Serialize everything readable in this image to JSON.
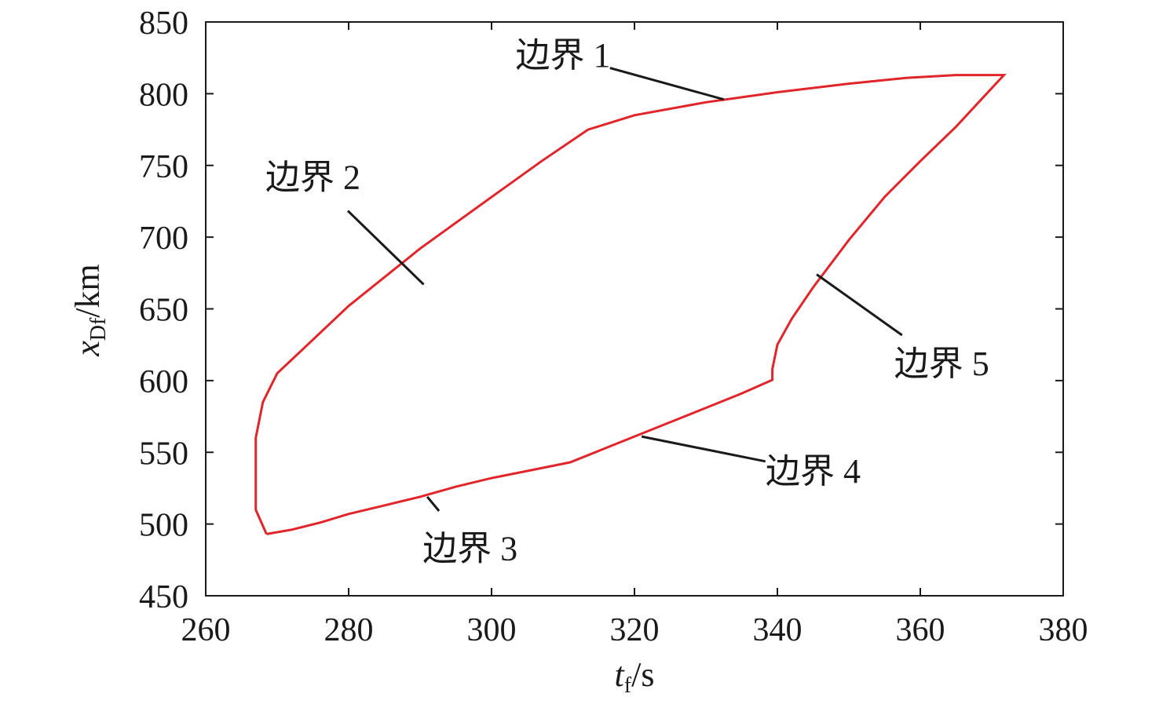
{
  "chart_data": {
    "type": "line",
    "title": "",
    "xlabel": {
      "main": "t",
      "sub": "f",
      "unit": "/s"
    },
    "ylabel": {
      "main": "x",
      "sub": "Df",
      "unit": "/km"
    },
    "xlim": [
      260,
      380
    ],
    "ylim": [
      450,
      850
    ],
    "xticks": [
      260,
      280,
      300,
      320,
      340,
      360,
      380
    ],
    "yticks": [
      450,
      500,
      550,
      600,
      650,
      700,
      750,
      800,
      850
    ],
    "grid": false,
    "legend": "none",
    "series_color": "#e0262b",
    "boundary": [
      [
        268.5,
        493
      ],
      [
        272,
        496
      ],
      [
        276,
        501
      ],
      [
        280,
        507
      ],
      [
        285,
        513
      ],
      [
        290,
        519
      ],
      [
        295,
        526
      ],
      [
        300,
        532
      ],
      [
        305,
        537
      ],
      [
        311,
        543
      ],
      [
        315,
        551
      ],
      [
        320,
        561
      ],
      [
        325,
        571
      ],
      [
        330,
        581
      ],
      [
        335,
        591
      ],
      [
        339.3,
        600.5
      ],
      [
        339.3,
        608
      ],
      [
        340,
        625
      ],
      [
        342,
        643
      ],
      [
        345,
        665
      ],
      [
        350,
        698
      ],
      [
        355,
        728
      ],
      [
        360,
        753
      ],
      [
        365,
        777
      ],
      [
        371.7,
        813
      ],
      [
        365,
        813
      ],
      [
        358,
        811
      ],
      [
        350,
        807
      ],
      [
        340,
        801
      ],
      [
        330,
        794
      ],
      [
        320,
        785
      ],
      [
        315.5,
        778
      ],
      [
        313.5,
        775
      ],
      [
        307,
        753
      ],
      [
        300,
        728
      ],
      [
        290,
        692
      ],
      [
        280,
        652
      ],
      [
        270,
        605
      ],
      [
        268,
        585
      ],
      [
        267,
        560
      ],
      [
        267,
        530
      ],
      [
        267,
        510
      ],
      [
        268.5,
        493
      ]
    ],
    "annotations": [
      {
        "text": "边界 1",
        "label_at": [
          310,
          827
        ],
        "point": [
          332.5,
          796
        ]
      },
      {
        "text": "边界 2",
        "label_at": [
          275,
          742
        ],
        "point": [
          290.5,
          667
        ]
      },
      {
        "text": "边界 3",
        "label_at": [
          297,
          483
        ],
        "point": [
          291,
          519
        ]
      },
      {
        "text": "边界 4",
        "label_at": [
          345,
          537
        ],
        "point": [
          321,
          561
        ]
      },
      {
        "text": "边界 5",
        "label_at": [
          363,
          612
        ],
        "point": [
          345.5,
          674
        ]
      }
    ]
  }
}
